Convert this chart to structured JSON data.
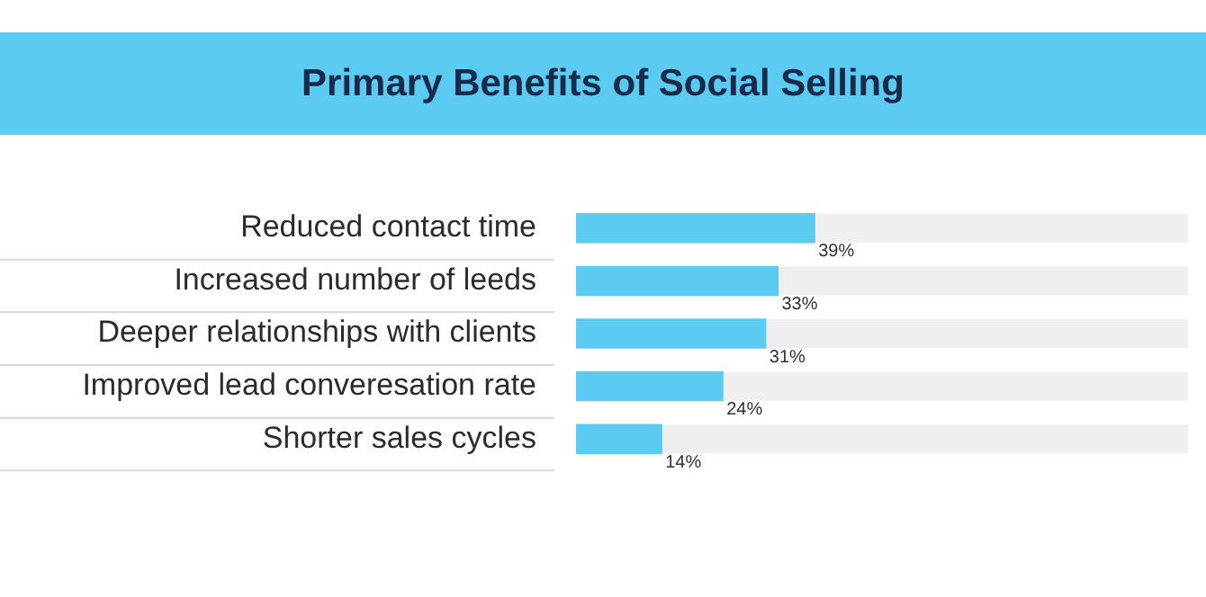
{
  "chart_data": {
    "type": "bar",
    "orientation": "horizontal",
    "title": "Primary Benefits of Social Selling",
    "categories": [
      "Reduced contact time",
      "Increased number of leeds",
      "Deeper relationships with clients",
      "Improved lead converesation rate",
      "Shorter sales cycles"
    ],
    "values": [
      39,
      33,
      31,
      24,
      14
    ],
    "color": "#5ccbf2",
    "xlim": [
      0,
      100
    ],
    "tick_labels": "y",
    "data_labels": true,
    "value_labels": [
      "39%",
      "33%",
      "31%",
      "24%",
      "14%"
    ],
    "legend": false
  }
}
